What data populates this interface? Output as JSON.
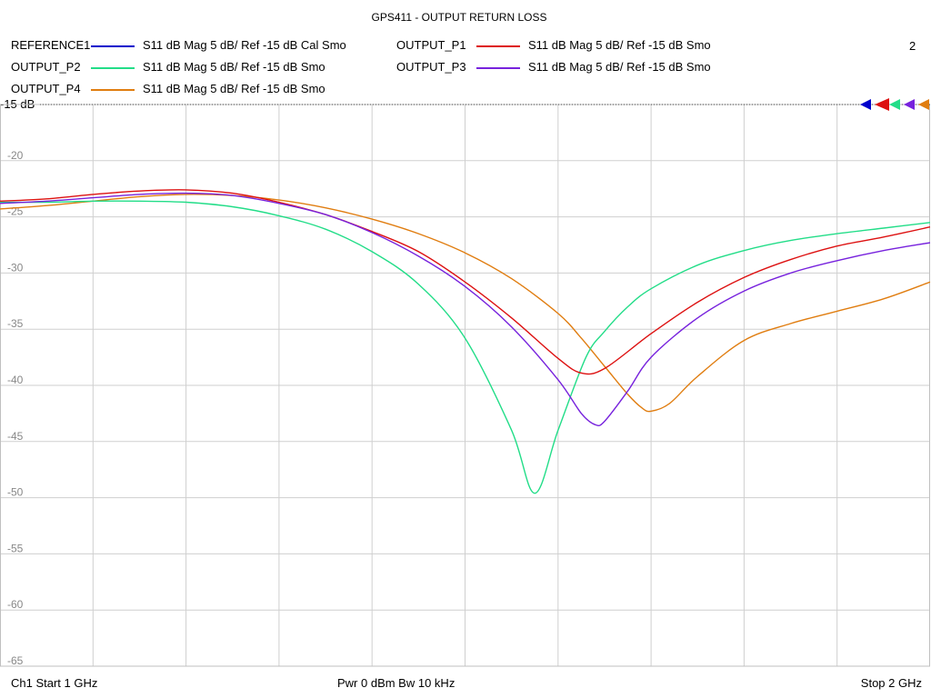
{
  "title": "GPS411 - OUTPUT RETURN LOSS",
  "channel_number": "2",
  "reference_label": "-15 dB",
  "legend": [
    {
      "name": "REFERENCE1",
      "desc": "S11  dB Mag  5 dB/ Ref -15 dB  Cal Smo",
      "color": "#0000cc"
    },
    {
      "name": "OUTPUT_P1",
      "desc": "S11  dB Mag  5 dB/ Ref -15 dB  Smo",
      "color": "#dd1111"
    },
    {
      "name": "OUTPUT_P2",
      "desc": "S11  dB Mag  5 dB/ Ref -15 dB  Smo",
      "color": "#22dd88"
    },
    {
      "name": "OUTPUT_P3",
      "desc": "S11  dB Mag  5 dB/ Ref -15 dB  Smo",
      "color": "#7722dd"
    },
    {
      "name": "OUTPUT_P4",
      "desc": "S11  dB Mag  5 dB/ Ref -15 dB  Smo",
      "color": "#e07d10"
    }
  ],
  "footer": {
    "start": "Ch1  Start  1 GHz",
    "power": "Pwr  0 dBm  Bw  10 kHz",
    "stop": "Stop  2 GHz"
  },
  "chart_data": {
    "type": "line",
    "title": "GPS411 - OUTPUT RETURN LOSS",
    "xlabel": "",
    "ylabel": "",
    "xlim": [
      1.0,
      2.0
    ],
    "ylim": [
      -65,
      -15
    ],
    "x_unit": "GHz",
    "y_unit": "dB",
    "yticks": [
      -20,
      -25,
      -30,
      -35,
      -40,
      -45,
      -50,
      -55,
      -60,
      -65
    ],
    "ytick_labels": [
      "-20",
      "-25",
      "-30",
      "-35",
      "-40",
      "-45",
      "-50",
      "-55",
      "-60",
      "-65"
    ],
    "grid": true,
    "series": [
      {
        "name": "OUTPUT_P4",
        "color": "#e07d10",
        "x": [
          1.0,
          1.05,
          1.1,
          1.15,
          1.2,
          1.25,
          1.3,
          1.35,
          1.4,
          1.45,
          1.5,
          1.55,
          1.6,
          1.625,
          1.65,
          1.675,
          1.69,
          1.7,
          1.72,
          1.75,
          1.8,
          1.85,
          1.9,
          1.95,
          2.0
        ],
        "y": [
          -24.3,
          -24.0,
          -23.6,
          -23.2,
          -23.0,
          -23.1,
          -23.5,
          -24.2,
          -25.2,
          -26.5,
          -28.2,
          -30.5,
          -33.6,
          -35.8,
          -38.3,
          -40.8,
          -42.0,
          -42.3,
          -41.6,
          -39.2,
          -36.0,
          -34.5,
          -33.4,
          -32.3,
          -30.8
        ]
      },
      {
        "name": "OUTPUT_P2",
        "color": "#22dd88",
        "x": [
          1.0,
          1.05,
          1.1,
          1.15,
          1.2,
          1.25,
          1.3,
          1.35,
          1.4,
          1.45,
          1.5,
          1.55,
          1.575,
          1.6,
          1.63,
          1.65,
          1.675,
          1.7,
          1.75,
          1.8,
          1.85,
          1.9,
          1.95,
          2.0
        ],
        "y": [
          -23.7,
          -23.7,
          -23.6,
          -23.6,
          -23.7,
          -24.1,
          -24.9,
          -26.1,
          -28.1,
          -31.0,
          -35.8,
          -44.0,
          -49.6,
          -44.0,
          -37.5,
          -35.2,
          -33.0,
          -31.4,
          -29.3,
          -28.0,
          -27.1,
          -26.5,
          -26.0,
          -25.5
        ]
      },
      {
        "name": "OUTPUT_P1",
        "color": "#dd1111",
        "x": [
          1.0,
          1.05,
          1.1,
          1.15,
          1.2,
          1.25,
          1.3,
          1.35,
          1.4,
          1.45,
          1.5,
          1.55,
          1.6,
          1.625,
          1.65,
          1.7,
          1.75,
          1.8,
          1.85,
          1.9,
          1.95,
          2.0
        ],
        "y": [
          -23.6,
          -23.4,
          -23.0,
          -22.7,
          -22.6,
          -22.9,
          -23.7,
          -24.8,
          -26.3,
          -28.1,
          -30.8,
          -34.0,
          -37.6,
          -38.9,
          -38.5,
          -35.4,
          -32.6,
          -30.4,
          -28.8,
          -27.6,
          -26.8,
          -25.9
        ]
      },
      {
        "name": "OUTPUT_P3",
        "color": "#7722dd",
        "x": [
          1.0,
          1.05,
          1.1,
          1.15,
          1.2,
          1.25,
          1.3,
          1.35,
          1.4,
          1.45,
          1.5,
          1.55,
          1.6,
          1.625,
          1.64,
          1.65,
          1.675,
          1.7,
          1.75,
          1.8,
          1.85,
          1.9,
          1.95,
          2.0
        ],
        "y": [
          -23.8,
          -23.6,
          -23.3,
          -23.0,
          -22.9,
          -23.1,
          -23.8,
          -24.8,
          -26.4,
          -28.5,
          -31.2,
          -34.8,
          -39.5,
          -42.5,
          -43.5,
          -43.2,
          -40.5,
          -37.5,
          -34.0,
          -31.6,
          -30.0,
          -28.9,
          -28.0,
          -27.3
        ]
      },
      {
        "name": "REFERENCE1",
        "color": "#0000cc",
        "x": [],
        "y": []
      }
    ]
  }
}
